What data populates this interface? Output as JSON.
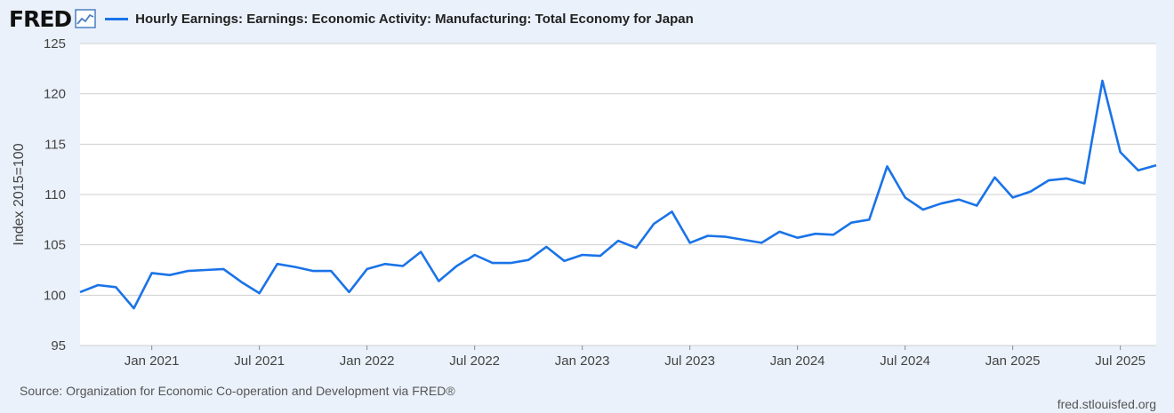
{
  "header": {
    "logo": "FRED",
    "logo_icon": "fred-chart-icon"
  },
  "chart_data": {
    "type": "line",
    "title": "Hourly Earnings: Earnings: Economic Activity: Manufacturing: Total Economy for Japan",
    "ylabel": "Index 2015=100",
    "xlabel": "",
    "ylim": [
      95,
      125
    ],
    "yticks": [
      95,
      100,
      105,
      110,
      115,
      120,
      125
    ],
    "xlim": [
      "2020-09",
      "2025-09"
    ],
    "xticks": [
      {
        "x": "2021-01",
        "label": "Jan 2021"
      },
      {
        "x": "2021-07",
        "label": "Jul 2021"
      },
      {
        "x": "2022-01",
        "label": "Jan 2022"
      },
      {
        "x": "2022-07",
        "label": "Jul 2022"
      },
      {
        "x": "2023-01",
        "label": "Jan 2023"
      },
      {
        "x": "2023-07",
        "label": "Jul 2023"
      },
      {
        "x": "2024-01",
        "label": "Jan 2024"
      },
      {
        "x": "2024-07",
        "label": "Jul 2024"
      },
      {
        "x": "2025-01",
        "label": "Jan 2025"
      },
      {
        "x": "2025-07",
        "label": "Jul 2025"
      }
    ],
    "grid": true,
    "color": "#1a73e8",
    "series": [
      {
        "name": "Hourly Earnings: Earnings: Economic Activity: Manufacturing: Total Economy for Japan",
        "x": [
          "2020-09",
          "2020-10",
          "2020-11",
          "2020-12",
          "2021-01",
          "2021-02",
          "2021-03",
          "2021-04",
          "2021-05",
          "2021-06",
          "2021-07",
          "2021-08",
          "2021-09",
          "2021-10",
          "2021-11",
          "2021-12",
          "2022-01",
          "2022-02",
          "2022-03",
          "2022-04",
          "2022-05",
          "2022-06",
          "2022-07",
          "2022-08",
          "2022-09",
          "2022-10",
          "2022-11",
          "2022-12",
          "2023-01",
          "2023-02",
          "2023-03",
          "2023-04",
          "2023-05",
          "2023-06",
          "2023-07",
          "2023-08",
          "2023-09",
          "2023-10",
          "2023-11",
          "2023-12",
          "2024-01",
          "2024-02",
          "2024-03",
          "2024-04",
          "2024-05",
          "2024-06",
          "2024-07",
          "2024-08",
          "2024-09",
          "2024-10",
          "2024-11",
          "2024-12",
          "2025-01",
          "2025-02",
          "2025-03",
          "2025-04",
          "2025-05",
          "2025-06",
          "2025-07",
          "2025-08",
          "2025-09"
        ],
        "values": [
          100.3,
          101.0,
          100.8,
          98.7,
          102.2,
          102.0,
          102.4,
          102.5,
          102.6,
          101.3,
          100.2,
          103.1,
          102.8,
          102.4,
          102.4,
          100.3,
          102.6,
          103.1,
          102.9,
          104.3,
          101.4,
          102.9,
          104.0,
          103.2,
          103.2,
          103.5,
          104.8,
          103.4,
          104.0,
          103.9,
          105.4,
          104.7,
          107.1,
          108.3,
          105.2,
          105.9,
          105.8,
          105.5,
          105.2,
          106.3,
          105.7,
          106.1,
          106.0,
          107.2,
          107.5,
          112.8,
          109.7,
          108.5,
          109.1,
          109.5,
          108.9,
          111.7,
          109.7,
          110.3,
          111.4,
          111.6,
          111.1,
          121.3,
          114.2,
          112.4,
          112.9
        ]
      }
    ]
  },
  "footer": {
    "source": "Source: Organization for Economic Co-operation and Development via FRED®",
    "site": "fred.stlouisfed.org"
  }
}
